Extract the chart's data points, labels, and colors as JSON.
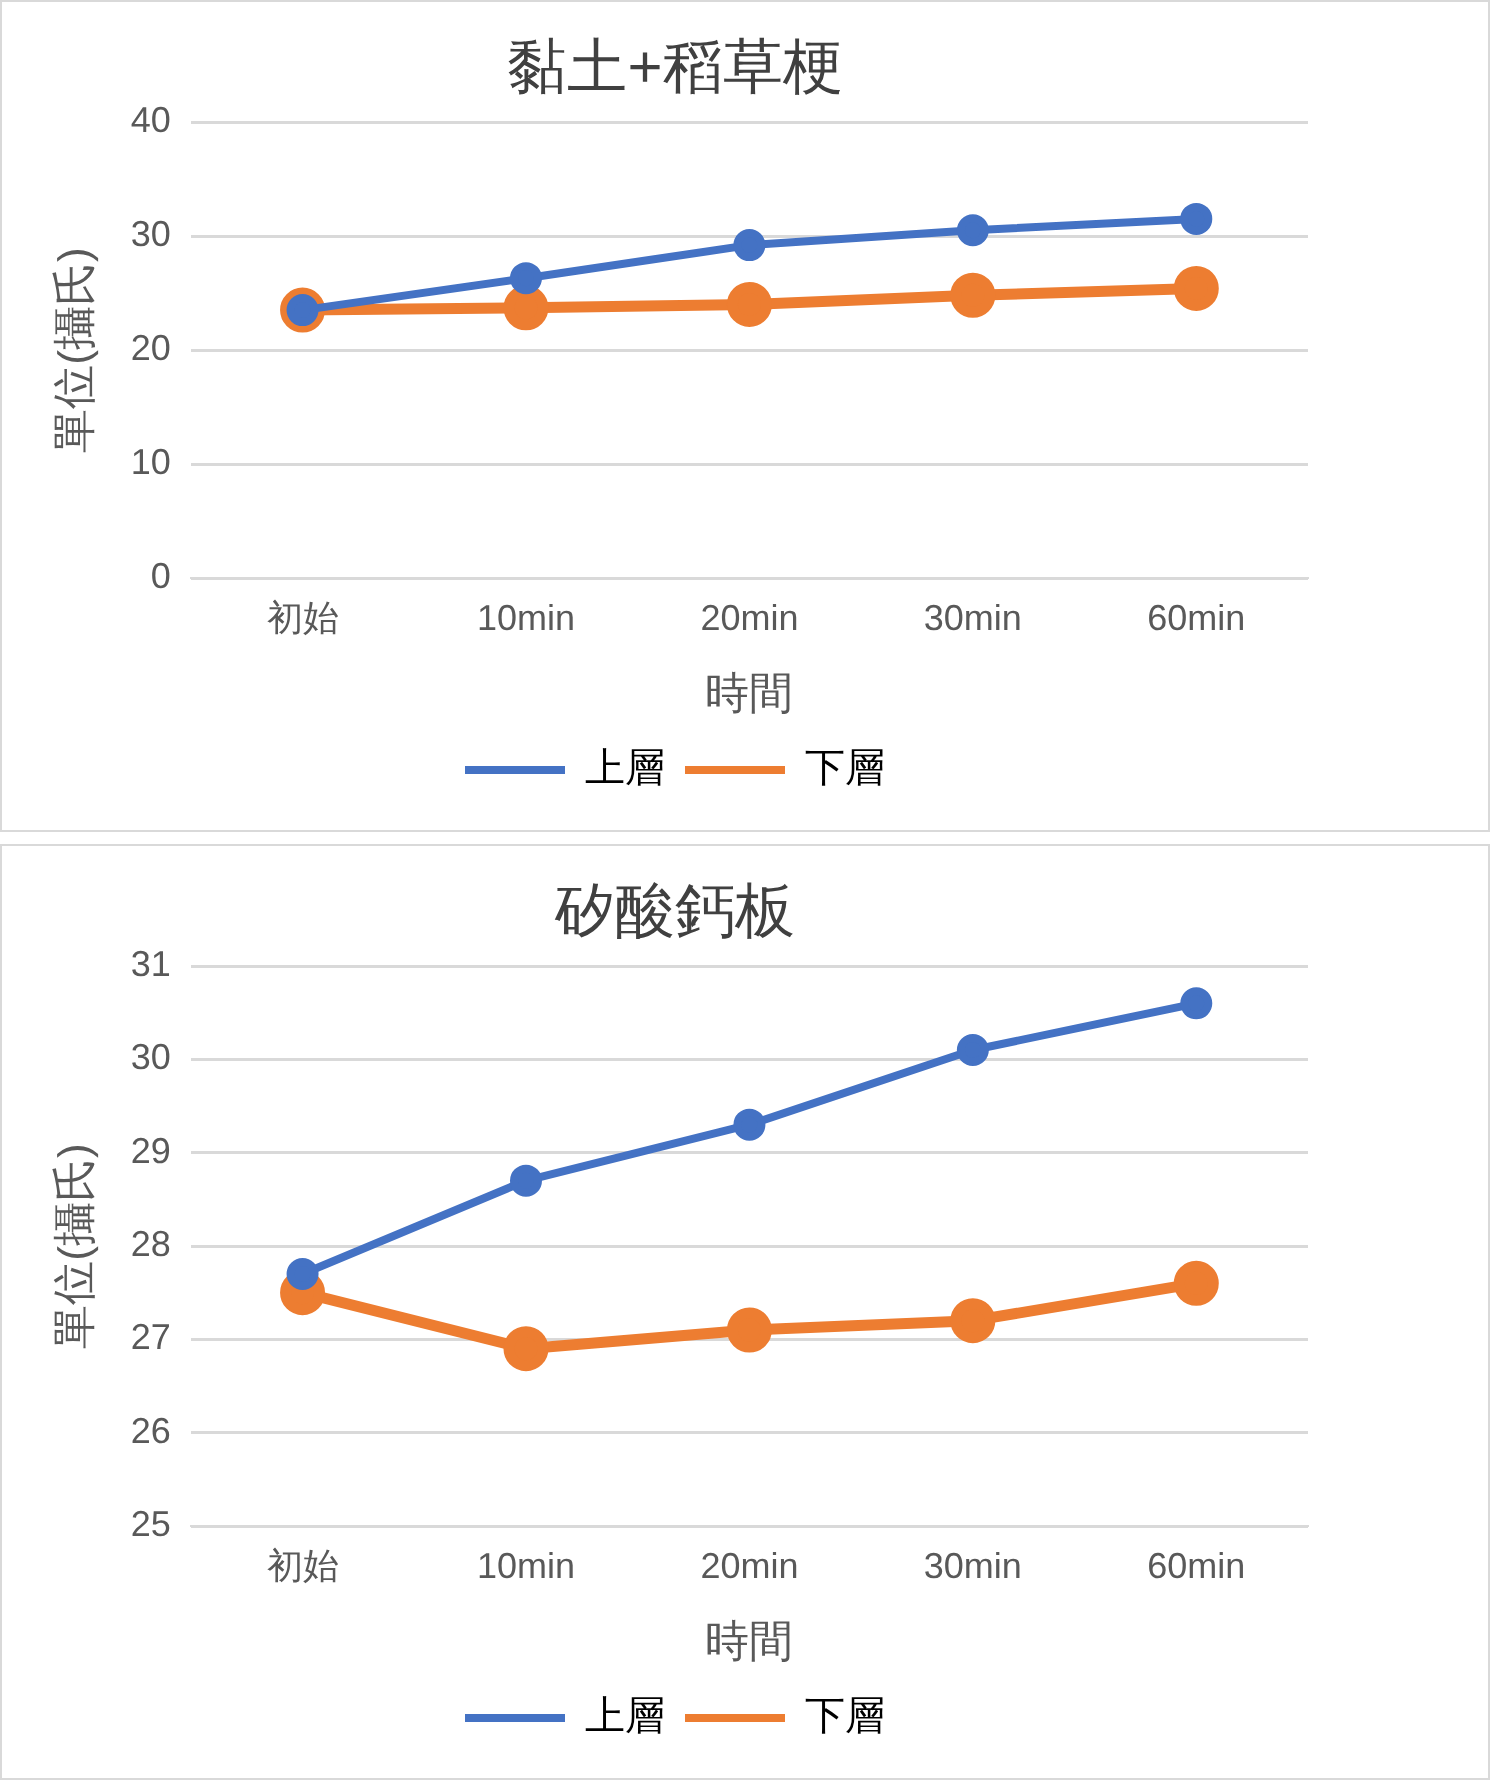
{
  "chart_data": [
    {
      "type": "line",
      "title": "黏土+稻草梗",
      "xlabel": "時間",
      "ylabel": "單位(攝氏)",
      "categories": [
        "初始",
        "10min",
        "20min",
        "30min",
        "60min"
      ],
      "series": [
        {
          "name": "上層",
          "color": "#4472c4",
          "values": [
            23.5,
            26.3,
            29.2,
            30.5,
            31.5
          ]
        },
        {
          "name": "下層",
          "color": "#ed7d31",
          "values": [
            23.5,
            23.7,
            24,
            24.8,
            25.4
          ]
        }
      ],
      "ylim": [
        0,
        40
      ],
      "yticks": [
        0,
        10,
        20,
        30,
        40
      ],
      "grid": "y",
      "legend": "bottom",
      "marker": "circle",
      "line_style": "solid"
    },
    {
      "type": "line",
      "title": "矽酸鈣板",
      "xlabel": "時間",
      "ylabel": "單位(攝氏)",
      "categories": [
        "初始",
        "10min",
        "20min",
        "30min",
        "60min"
      ],
      "series": [
        {
          "name": "上層",
          "color": "#4472c4",
          "values": [
            27.7,
            28.7,
            29.3,
            30.1,
            30.6
          ]
        },
        {
          "name": "下層",
          "color": "#ed7d31",
          "values": [
            27.5,
            26.9,
            27.1,
            27.2,
            27.6
          ]
        }
      ],
      "ylim": [
        25,
        31
      ],
      "yticks": [
        25,
        26,
        27,
        28,
        29,
        30,
        31
      ],
      "grid": "y",
      "legend": "bottom",
      "marker": "circle",
      "line_style": "solid"
    }
  ]
}
